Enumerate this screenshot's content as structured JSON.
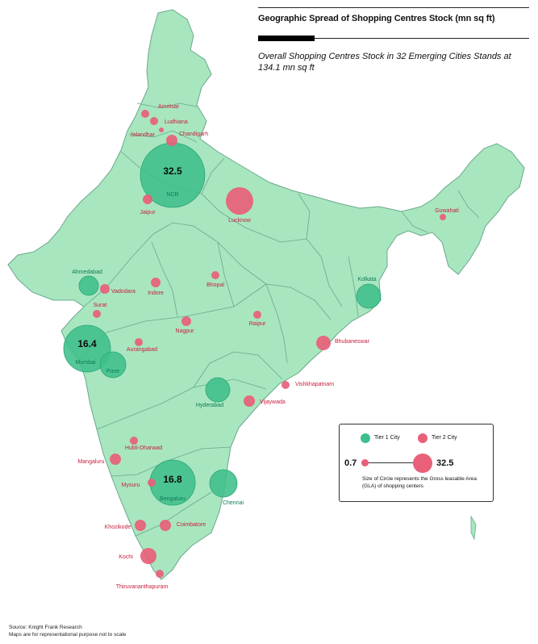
{
  "header": {
    "title": "Geographic Spread of Shopping Centres Stock (mn sq ft)",
    "subtitle": "Overall Shopping Centres Stock in 32 Emerging Cities Stands at 134.1 mn sq ft"
  },
  "colors": {
    "land": "#a8e6c0",
    "border": "#6aa88a",
    "tier1": "#3dbf8a",
    "tier2": "#e8607a",
    "tier1_text": "#0f7a55",
    "tier2_text": "#c8203f"
  },
  "cities": [
    {
      "name": "Amritsar",
      "tier": 2
    },
    {
      "name": "Ludhiana",
      "tier": 2
    },
    {
      "name": "Jalandhar",
      "tier": 2
    },
    {
      "name": "Chandigarh",
      "tier": 2
    },
    {
      "name": "NCR",
      "tier": 1,
      "value": "32.5"
    },
    {
      "name": "Jaipur",
      "tier": 2
    },
    {
      "name": "Lucknow",
      "tier": 2
    },
    {
      "name": "Guwahati",
      "tier": 2
    },
    {
      "name": "Ahmedabad",
      "tier": 1
    },
    {
      "name": "Vadodara",
      "tier": 2
    },
    {
      "name": "Indore",
      "tier": 2
    },
    {
      "name": "Bhopal",
      "tier": 2
    },
    {
      "name": "Kolkata",
      "tier": 1
    },
    {
      "name": "Surat",
      "tier": 2
    },
    {
      "name": "Raipur",
      "tier": 2
    },
    {
      "name": "Nagpur",
      "tier": 2
    },
    {
      "name": "Bhubaneswar",
      "tier": 2
    },
    {
      "name": "Mumbai",
      "tier": 1,
      "value": "16.4"
    },
    {
      "name": "Aurangabad",
      "tier": 2
    },
    {
      "name": "Pune",
      "tier": 1
    },
    {
      "name": "Vishkhapatnam",
      "tier": 2
    },
    {
      "name": "Hyderabad",
      "tier": 1
    },
    {
      "name": "Vijaywada",
      "tier": 2
    },
    {
      "name": "Hubli-Dharwad",
      "tier": 2
    },
    {
      "name": "Mangaluru",
      "tier": 2
    },
    {
      "name": "Mysuru",
      "tier": 2
    },
    {
      "name": "Bengaluru",
      "tier": 1,
      "value": "16.8"
    },
    {
      "name": "Chennai",
      "tier": 1
    },
    {
      "name": "Khozikode",
      "tier": 2
    },
    {
      "name": "Coimbatore",
      "tier": 2
    },
    {
      "name": "Kochi",
      "tier": 2
    },
    {
      "name": "Thiruvananthapuram",
      "tier": 2
    }
  ],
  "legend": {
    "tier1_label": "Tier 1 City",
    "tier2_label": "Tier 2 City",
    "min_value": "0.7",
    "max_value": "32.5",
    "note": "Size of Circle represents the Gross leasable Area (GLA) of shopping centers"
  },
  "footer": {
    "source": "Source: Knight Frank Research",
    "disclaimer": "Maps are for representational purpose not to scale"
  }
}
